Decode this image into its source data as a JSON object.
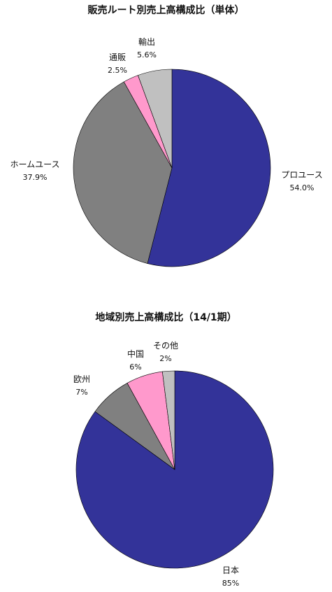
{
  "chart_data": [
    {
      "type": "pie",
      "title": "販売ルート別売上高構成比（単体）",
      "slices": [
        {
          "label": "プロユース",
          "value": 54.0,
          "value_label": "54.0%",
          "color": "#333399"
        },
        {
          "label": "ホームユース",
          "value": 37.9,
          "value_label": "37.9%",
          "color": "#808080"
        },
        {
          "label": "通販",
          "value": 2.5,
          "value_label": "2.5%",
          "color": "#ff99cc"
        },
        {
          "label": "輸出",
          "value": 5.6,
          "value_label": "5.6%",
          "color": "#c0c0c0"
        }
      ]
    },
    {
      "type": "pie",
      "title": "地域別売上高構成比（14/1期）",
      "slices": [
        {
          "label": "日本",
          "value": 85,
          "value_label": "85%",
          "color": "#333399"
        },
        {
          "label": "欧州",
          "value": 7,
          "value_label": "7%",
          "color": "#808080"
        },
        {
          "label": "中国",
          "value": 6,
          "value_label": "6%",
          "color": "#ff99cc"
        },
        {
          "label": "その他",
          "value": 2,
          "value_label": "2%",
          "color": "#c0c0c0"
        }
      ]
    }
  ]
}
